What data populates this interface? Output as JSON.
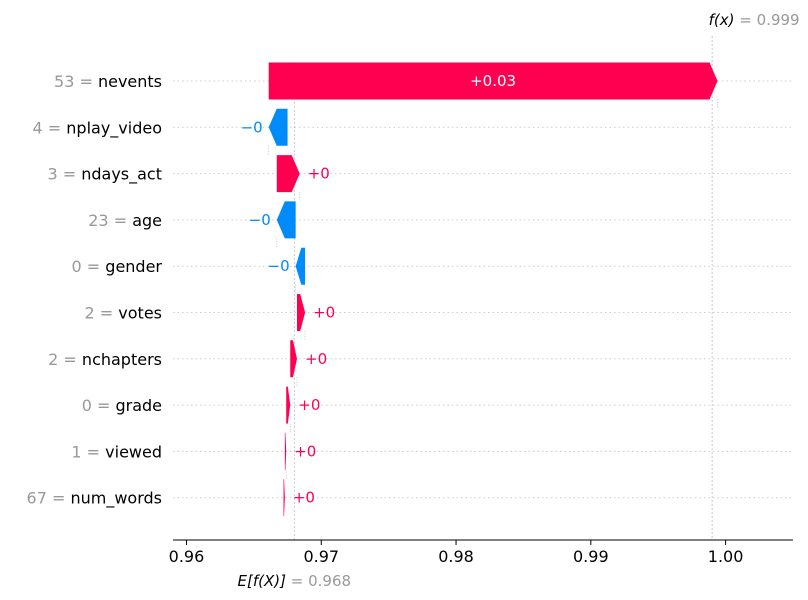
{
  "chart_data": {
    "type": "waterfall",
    "base_value": 0.968,
    "output_value": 0.999,
    "base_label_text": "E[f(X)]",
    "base_value_text": "= 0.968",
    "output_label_text": "f(x)",
    "output_value_text": "= 0.999",
    "xlim": [
      0.959,
      1.005
    ],
    "ticks": [
      0.96,
      0.97,
      0.98,
      0.99,
      1.0
    ],
    "tick_labels": [
      "0.96",
      "0.97",
      "0.98",
      "0.99",
      "1.00"
    ],
    "colors": {
      "positive": "#ff0051",
      "negative": "#008bfb"
    },
    "features": [
      {
        "value": "53",
        "name": "nevents",
        "start": 0.9661,
        "end": 0.9994,
        "label": "+0.03"
      },
      {
        "value": "4",
        "name": "nplay_video",
        "start": 0.9675,
        "end": 0.9661,
        "label": "−0"
      },
      {
        "value": "3",
        "name": "ndays_act",
        "start": 0.9667,
        "end": 0.9684,
        "label": "+0"
      },
      {
        "value": "23",
        "name": "age",
        "start": 0.9681,
        "end": 0.9667,
        "label": "−0"
      },
      {
        "value": "0",
        "name": "gender",
        "start": 0.9688,
        "end": 0.9681,
        "label": "−0"
      },
      {
        "value": "2",
        "name": "votes",
        "start": 0.9682,
        "end": 0.9688,
        "label": "+0"
      },
      {
        "value": "2",
        "name": "nchapters",
        "start": 0.9677,
        "end": 0.9682,
        "label": "+0"
      },
      {
        "value": "0",
        "name": "grade",
        "start": 0.9674,
        "end": 0.9677,
        "label": "+0"
      },
      {
        "value": "1",
        "name": "viewed",
        "start": 0.9673,
        "end": 0.9674,
        "label": "+0"
      },
      {
        "value": "67",
        "name": "num_words",
        "start": 0.9672,
        "end": 0.9673,
        "label": "+0"
      }
    ]
  }
}
